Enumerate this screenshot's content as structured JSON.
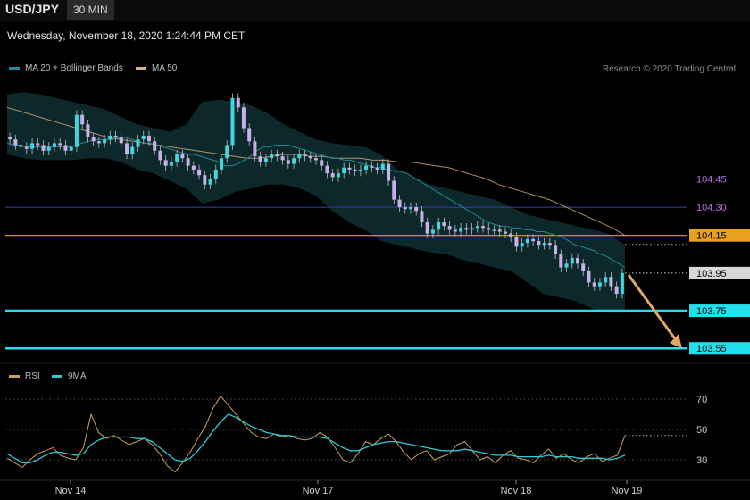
{
  "header": {
    "symbol": "USD/JPY",
    "interval": "30 MIN",
    "timestamp": "Wednesday, November 18, 2020 1:24:44 PM CET",
    "credit": "Research © 2020 Trading Central"
  },
  "legend_main": [
    {
      "label": "MA 20 + Bollinger Bands",
      "color": "#1f8a99"
    },
    {
      "label": "MA 50",
      "color": "#d9b07c"
    }
  ],
  "legend_rsi": [
    {
      "label": "RSI",
      "color": "#c8a060"
    },
    {
      "label": "9MA",
      "color": "#2ec8d8"
    }
  ],
  "colors": {
    "bull": "#3fd6e0",
    "bear": "#c6b2e8",
    "bollinger_fill": "#0e2a2c",
    "ma20": "#1f8a99",
    "ma50": "#d9b07c",
    "rsi": "#c8a060",
    "rsi_ma": "#2ec8d8"
  },
  "chart_data": [
    {
      "type": "candlestick",
      "title": "USD/JPY",
      "x_labels": [
        "Nov 14",
        "Nov 17",
        "Nov 18",
        "Nov 19"
      ],
      "ylim": [
        103.48,
        104.95
      ],
      "levels": [
        {
          "value": 104.45,
          "label": "104.45",
          "style": "thin-blue",
          "text_color": "#b070e0"
        },
        {
          "value": 104.3,
          "label": "104.30",
          "style": "thin-blue",
          "text_color": "#b070e0"
        },
        {
          "value": 104.15,
          "label": "104.15",
          "style": "orange",
          "text_color": "#000000",
          "box_color": "#e8a020"
        },
        {
          "value": 103.95,
          "label": "103.95",
          "style": "dotted-white",
          "text_color": "#000000",
          "box_color": "#d8d8d8"
        },
        {
          "value": 103.75,
          "label": "103.75",
          "style": "cyan",
          "text_color": "#000000",
          "box_color": "#22e0ec"
        },
        {
          "value": 103.55,
          "label": "103.55",
          "style": "cyan",
          "text_color": "#000000",
          "box_color": "#22e0ec"
        }
      ],
      "forecast_arrow": {
        "from": 103.95,
        "to": 103.55,
        "color": "#e0a868"
      },
      "closes": [
        104.66,
        104.63,
        104.62,
        104.61,
        104.64,
        104.63,
        104.6,
        104.62,
        104.64,
        104.63,
        104.6,
        104.62,
        104.79,
        104.74,
        104.67,
        104.65,
        104.64,
        104.66,
        104.68,
        104.67,
        104.64,
        104.58,
        104.62,
        104.66,
        104.68,
        104.65,
        104.6,
        104.55,
        104.52,
        104.54,
        104.58,
        104.56,
        104.52,
        104.5,
        104.47,
        104.42,
        104.45,
        104.5,
        104.56,
        104.63,
        104.88,
        104.83,
        104.72,
        104.65,
        104.57,
        104.54,
        104.56,
        104.58,
        104.57,
        104.55,
        104.53,
        104.56,
        104.58,
        104.57,
        104.56,
        104.55,
        104.52,
        104.48,
        104.46,
        104.48,
        104.51,
        104.5,
        104.49,
        104.5,
        104.52,
        104.51,
        104.5,
        104.53,
        104.44,
        104.34,
        104.3,
        104.29,
        104.3,
        104.28,
        104.22,
        104.16,
        104.18,
        104.22,
        104.2,
        104.18,
        104.17,
        104.19,
        104.18,
        104.19,
        104.2,
        104.19,
        104.18,
        104.18,
        104.17,
        104.16,
        104.14,
        104.09,
        104.11,
        104.13,
        104.12,
        104.1,
        104.11,
        104.1,
        104.05,
        103.98,
        104.0,
        104.03,
        104.0,
        103.96,
        103.9,
        103.88,
        103.9,
        103.93,
        103.88,
        103.84,
        103.95
      ],
      "ma20": [
        104.64,
        104.63,
        104.63,
        104.62,
        104.62,
        104.62,
        104.62,
        104.62,
        104.62,
        104.62,
        104.62,
        104.63,
        104.64,
        104.65,
        104.66,
        104.66,
        104.66,
        104.66,
        104.67,
        104.67,
        104.66,
        104.65,
        104.64,
        104.64,
        104.63,
        104.62,
        104.61,
        104.6,
        104.59,
        104.58,
        104.58,
        104.57,
        104.56,
        104.55,
        104.54,
        104.52,
        104.52,
        104.53,
        104.55,
        104.57,
        104.6,
        104.62,
        104.62,
        104.63,
        104.63,
        104.63,
        104.62,
        104.61,
        104.6,
        104.59,
        104.58,
        104.57,
        104.56,
        104.56,
        104.55,
        104.55,
        104.54,
        104.53,
        104.52,
        104.51,
        104.51,
        104.5,
        104.49,
        104.49,
        104.48,
        104.46,
        104.44,
        104.42,
        104.4,
        104.38,
        104.36,
        104.34,
        104.32,
        104.3,
        104.28,
        104.26,
        104.24,
        104.22,
        104.21,
        104.2,
        104.2,
        104.19,
        104.19,
        104.18,
        104.18,
        104.17,
        104.17,
        104.16,
        104.15,
        104.14,
        104.12,
        104.1,
        104.09,
        104.08,
        104.07,
        104.05,
        104.04,
        104.02,
        104.0,
        103.98
      ],
      "ma50": [
        104.83,
        104.81,
        104.79,
        104.77,
        104.75,
        104.73,
        104.71,
        104.69,
        104.67,
        104.66,
        104.65,
        104.64,
        104.63,
        104.62,
        104.61,
        104.6,
        104.59,
        104.58,
        104.57,
        104.56,
        104.56,
        104.57,
        104.58,
        104.58,
        104.57,
        104.57,
        104.56,
        104.56,
        104.56,
        104.55,
        104.55,
        104.54,
        104.54,
        104.53,
        104.52,
        104.51,
        104.49,
        104.47,
        104.45,
        104.42,
        104.4,
        104.38,
        104.36,
        104.34,
        104.31,
        104.28,
        104.25,
        104.22,
        104.19,
        104.15
      ],
      "bollinger_upper": [
        104.9,
        104.91,
        104.9,
        104.88,
        104.86,
        104.84,
        104.82,
        104.78,
        104.74,
        104.72,
        104.7,
        104.74,
        104.86,
        104.87,
        104.86,
        104.84,
        104.8,
        104.74,
        104.7,
        104.66,
        104.64,
        104.63,
        104.62,
        104.58,
        104.5,
        104.46,
        104.42,
        104.4,
        104.38,
        104.36,
        104.34,
        104.3,
        104.26,
        104.24,
        104.22,
        104.2,
        104.18,
        104.16,
        104.1
      ],
      "bollinger_lower": [
        104.58,
        104.56,
        104.55,
        104.55,
        104.55,
        104.56,
        104.56,
        104.54,
        104.5,
        104.48,
        104.44,
        104.4,
        104.32,
        104.34,
        104.38,
        104.4,
        104.42,
        104.42,
        104.4,
        104.36,
        104.28,
        104.22,
        104.18,
        104.12,
        104.1,
        104.08,
        104.06,
        104.05,
        104.02,
        104.0,
        103.98,
        103.96,
        103.9,
        103.84,
        103.82,
        103.8,
        103.76,
        103.74,
        103.74
      ]
    },
    {
      "type": "line",
      "title": "RSI",
      "ylim": [
        20,
        80
      ],
      "y_ticks": [
        70,
        50,
        30
      ],
      "series": [
        {
          "name": "RSI",
          "values": [
            31,
            28,
            25,
            30,
            34,
            36,
            38,
            33,
            31,
            30,
            38,
            60,
            48,
            44,
            46,
            43,
            40,
            42,
            44,
            40,
            34,
            26,
            22,
            28,
            35,
            44,
            52,
            64,
            72,
            66,
            60,
            54,
            48,
            45,
            44,
            47,
            45,
            46,
            44,
            43,
            44,
            48,
            45,
            38,
            30,
            28,
            34,
            42,
            40,
            44,
            47,
            42,
            35,
            30,
            34,
            36,
            30,
            32,
            34,
            40,
            42,
            36,
            30,
            32,
            28,
            33,
            36,
            31,
            30,
            28,
            33,
            37,
            31,
            34,
            30,
            28,
            32,
            34,
            29,
            31,
            33,
            46
          ]
        },
        {
          "name": "9MA",
          "values": [
            34,
            31,
            28,
            28,
            30,
            33,
            35,
            35,
            34,
            33,
            34,
            40,
            43,
            45,
            45,
            45,
            45,
            44,
            44,
            42,
            38,
            34,
            30,
            29,
            31,
            36,
            42,
            49,
            55,
            60,
            58,
            55,
            52,
            50,
            48,
            47,
            46,
            46,
            45,
            45,
            45,
            45,
            44,
            41,
            38,
            36,
            36,
            38,
            40,
            41,
            42,
            42,
            41,
            40,
            39,
            38,
            37,
            36,
            36,
            36,
            37,
            36,
            35,
            34,
            33,
            33,
            33,
            32,
            32,
            32,
            32,
            33,
            32,
            32,
            32,
            31,
            31,
            31,
            31,
            30,
            31,
            33
          ]
        }
      ]
    }
  ]
}
